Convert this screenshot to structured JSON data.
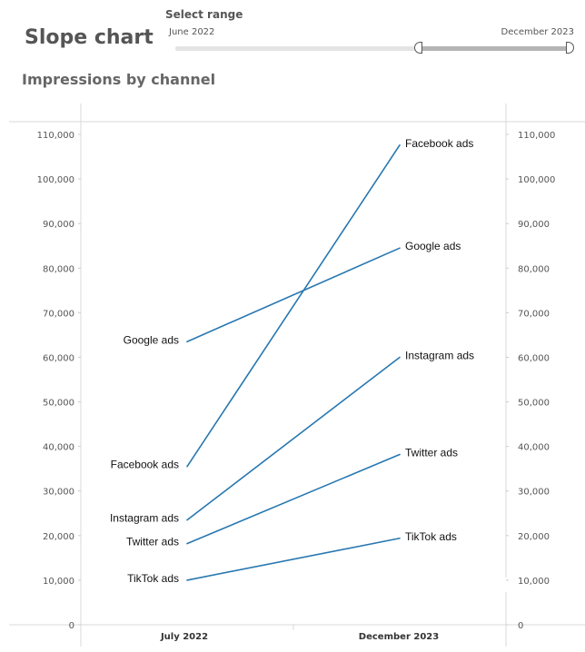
{
  "header": {
    "title": "Slope chart",
    "range_label": "Select range",
    "range_start": "June 2022",
    "range_end": "December 2023"
  },
  "chart_data": {
    "type": "line",
    "title": "Impressions by channel",
    "categories": [
      "July 2022",
      "December  2023"
    ],
    "ylim": [
      0,
      110000
    ],
    "yticks": [
      "0",
      "10,000",
      "20,000",
      "30,000",
      "40,000",
      "50,000",
      "60,000",
      "70,000",
      "80,000",
      "90,000",
      "100,000",
      "110,000"
    ],
    "line_color": "#2777b0",
    "series": [
      {
        "name": "Facebook ads",
        "values": [
          35500,
          107600
        ]
      },
      {
        "name": "Google ads",
        "values": [
          63500,
          84500
        ]
      },
      {
        "name": "Instagram ads",
        "values": [
          23500,
          60000
        ]
      },
      {
        "name": "Twitter ads",
        "values": [
          18200,
          38200
        ]
      },
      {
        "name": "TikTok ads",
        "values": [
          10000,
          19400
        ]
      }
    ]
  }
}
